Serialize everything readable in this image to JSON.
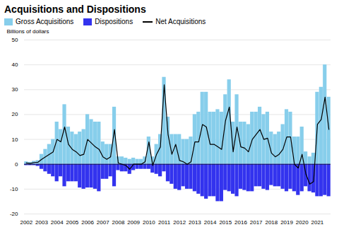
{
  "chart_data": {
    "type": "bar",
    "title": "Acquisitions and Dispositions",
    "ylabel": "Billions of dollars",
    "categories": [
      "2002",
      null,
      null,
      null,
      "2003",
      null,
      null,
      null,
      "2004",
      null,
      null,
      null,
      "2005",
      null,
      null,
      null,
      "2006",
      null,
      null,
      null,
      "2007",
      null,
      null,
      null,
      "2008",
      null,
      null,
      null,
      "2009",
      null,
      null,
      null,
      "2010",
      null,
      null,
      null,
      "2011",
      null,
      null,
      null,
      "2012",
      null,
      null,
      null,
      "2013",
      null,
      null,
      null,
      "2014",
      null,
      null,
      null,
      "2015",
      null,
      null,
      null,
      "2016",
      null,
      null,
      null,
      "2017",
      null,
      null,
      null,
      "2018",
      null,
      null,
      null,
      "2019",
      null,
      null,
      null,
      "2020",
      null,
      null,
      null,
      "2021",
      null,
      null,
      null
    ],
    "series": [
      {
        "name": "Gross Acquisitions",
        "type": "bar",
        "color": "#87CEEB",
        "values": [
          1.0,
          0.8,
          1.2,
          1.5,
          4.0,
          6.0,
          8.0,
          10.0,
          17.0,
          14.0,
          24.0,
          15.0,
          13.0,
          12.0,
          13.0,
          14.0,
          20.0,
          18.0,
          17.0,
          17.0,
          9.0,
          8.0,
          8.0,
          23.0,
          3.0,
          3.0,
          2.5,
          2.0,
          2.5,
          2.0,
          2.0,
          3.0,
          11.0,
          3.0,
          8.0,
          12.0,
          35.0,
          19.0,
          12.0,
          12.0,
          12.0,
          10.0,
          10.0,
          11.0,
          20.0,
          21.0,
          29.0,
          29.0,
          21.0,
          21.0,
          22.0,
          21.0,
          28.0,
          34.0,
          17.0,
          28.0,
          17.0,
          17.0,
          16.0,
          21.0,
          21.0,
          23.0,
          20.0,
          21.0,
          13.0,
          12.0,
          13.0,
          16.0,
          22.0,
          21.0,
          11.0,
          11.0,
          15.0,
          5.0,
          3.0,
          4.5,
          29.0,
          31.0,
          40.0,
          27.0
        ]
      },
      {
        "name": "Dispositions",
        "type": "bar",
        "color": "#3333EE",
        "values": [
          -0.5,
          -0.5,
          -0.5,
          -0.8,
          -2.0,
          -3.0,
          -4.0,
          -5.0,
          -7.0,
          -5.0,
          -9.0,
          -7.0,
          -7.0,
          -7.0,
          -9.5,
          -10.0,
          -9.5,
          -9.5,
          -10.0,
          -11.0,
          -6.0,
          -6.0,
          -5.0,
          -9.0,
          -2.5,
          -3.0,
          -3.0,
          -4.0,
          -2.5,
          -2.0,
          -2.0,
          -2.0,
          -2.0,
          -3.5,
          -4.0,
          -5.0,
          -3.0,
          -7.0,
          -8.0,
          -10.0,
          -10.5,
          -9.0,
          -10.0,
          -10.0,
          -11.0,
          -12.0,
          -13.0,
          -14.0,
          -13.0,
          -13.0,
          -15.0,
          -15.0,
          -10.5,
          -11.0,
          -12.0,
          -13.0,
          -10.0,
          -10.5,
          -11.0,
          -11.0,
          -9.0,
          -9.0,
          -10.0,
          -10.5,
          -8.5,
          -9.0,
          -9.0,
          -10.0,
          -11.0,
          -10.0,
          -11.0,
          -12.5,
          -11.0,
          -9.0,
          -11.0,
          -11.5,
          -13.0,
          -13.0,
          -12.5,
          -13.0
        ]
      },
      {
        "name": "Net Acquisitions",
        "type": "line",
        "color": "#000000",
        "values": [
          0.5,
          0.3,
          0.7,
          0.8,
          2.0,
          3.0,
          4.0,
          5.0,
          10.0,
          9.0,
          15.0,
          8.0,
          6.0,
          5.0,
          3.5,
          4.0,
          10.0,
          8.5,
          7.0,
          6.0,
          3.0,
          2.0,
          3.0,
          14.0,
          0.5,
          0.0,
          -0.5,
          -2.0,
          0.0,
          0.0,
          0.0,
          1.0,
          9.0,
          -0.5,
          4.0,
          7.0,
          32.0,
          12.0,
          4.0,
          8.0,
          1.5,
          1.0,
          0.0,
          1.0,
          9.0,
          9.0,
          16.0,
          15.0,
          8.0,
          8.0,
          7.0,
          6.0,
          17.5,
          23.0,
          5.0,
          15.0,
          7.0,
          6.5,
          5.0,
          10.0,
          12.0,
          14.0,
          10.0,
          10.5,
          4.5,
          3.0,
          4.0,
          6.0,
          11.0,
          11.0,
          0.0,
          -1.5,
          4.0,
          -4.0,
          -8.0,
          -7.0,
          16.0,
          18.0,
          27.0,
          14.0
        ]
      }
    ],
    "ylim": [
      -20,
      50
    ],
    "yticks": [
      -20,
      -10,
      0,
      10,
      20,
      30,
      40,
      50
    ],
    "grid": true,
    "legend": "upper left"
  }
}
